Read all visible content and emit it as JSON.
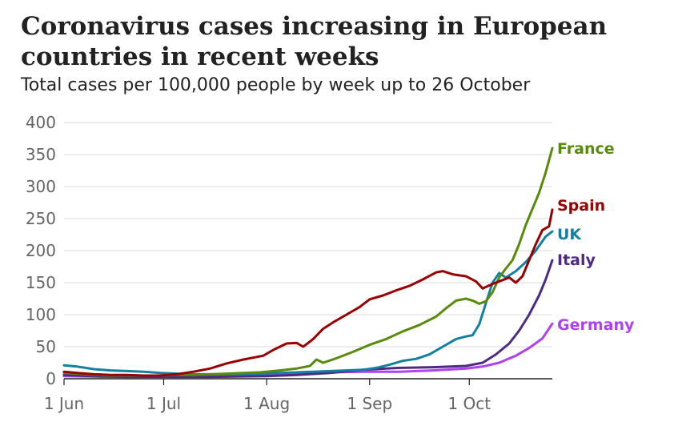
{
  "title": "Coronavirus cases increasing in European countries in recent weeks",
  "subtitle": "Total cases per 100,000 people by week up to 26 October",
  "chart_data": {
    "type": "line",
    "title": "Coronavirus cases increasing in European countries in recent weeks",
    "subtitle": "Total cases per 100,000 people by week up to 26 October",
    "xlabel": "",
    "ylabel": "",
    "x_ticks": [
      "1 Jun",
      "1 Jul",
      "1 Aug",
      "1 Sep",
      "1 Oct"
    ],
    "y_ticks": [
      0,
      50,
      100,
      150,
      200,
      250,
      300,
      350,
      400
    ],
    "x_range": [
      "2020-06-01",
      "2020-10-26"
    ],
    "ylim": [
      0,
      400
    ],
    "grid": true,
    "legend": "direct labels at line ends",
    "series": [
      {
        "name": "France",
        "color": "#588b0b",
        "points": [
          [
            "2020-06-01",
            9
          ],
          [
            "2020-06-05",
            8
          ],
          [
            "2020-06-10",
            6
          ],
          [
            "2020-06-15",
            5
          ],
          [
            "2020-06-20",
            5
          ],
          [
            "2020-06-25",
            5
          ],
          [
            "2020-06-30",
            5
          ],
          [
            "2020-07-05",
            6
          ],
          [
            "2020-07-10",
            6
          ],
          [
            "2020-07-15",
            7
          ],
          [
            "2020-07-20",
            8
          ],
          [
            "2020-07-25",
            9
          ],
          [
            "2020-07-30",
            10
          ],
          [
            "2020-08-05",
            13
          ],
          [
            "2020-08-10",
            16
          ],
          [
            "2020-08-14",
            20
          ],
          [
            "2020-08-16",
            30
          ],
          [
            "2020-08-18",
            25
          ],
          [
            "2020-08-22",
            32
          ],
          [
            "2020-08-27",
            42
          ],
          [
            "2020-09-01",
            53
          ],
          [
            "2020-09-06",
            62
          ],
          [
            "2020-09-11",
            74
          ],
          [
            "2020-09-16",
            84
          ],
          [
            "2020-09-21",
            97
          ],
          [
            "2020-09-24",
            110
          ],
          [
            "2020-09-27",
            122
          ],
          [
            "2020-09-30",
            125
          ],
          [
            "2020-10-02",
            122
          ],
          [
            "2020-10-04",
            117
          ],
          [
            "2020-10-06",
            121
          ],
          [
            "2020-10-08",
            135
          ],
          [
            "2020-10-10",
            158
          ],
          [
            "2020-10-12",
            172
          ],
          [
            "2020-10-14",
            185
          ],
          [
            "2020-10-16",
            210
          ],
          [
            "2020-10-18",
            240
          ],
          [
            "2020-10-20",
            265
          ],
          [
            "2020-10-22",
            290
          ],
          [
            "2020-10-24",
            322
          ],
          [
            "2020-10-26",
            360
          ]
        ]
      },
      {
        "name": "Spain",
        "color": "#990000",
        "points": [
          [
            "2020-06-01",
            11
          ],
          [
            "2020-06-05",
            9
          ],
          [
            "2020-06-10",
            7
          ],
          [
            "2020-06-15",
            6
          ],
          [
            "2020-06-20",
            6
          ],
          [
            "2020-06-25",
            5
          ],
          [
            "2020-06-30",
            5
          ],
          [
            "2020-07-05",
            7
          ],
          [
            "2020-07-10",
            11
          ],
          [
            "2020-07-15",
            16
          ],
          [
            "2020-07-20",
            24
          ],
          [
            "2020-07-25",
            30
          ],
          [
            "2020-07-31",
            36
          ],
          [
            "2020-08-03",
            45
          ],
          [
            "2020-08-07",
            55
          ],
          [
            "2020-08-10",
            56
          ],
          [
            "2020-08-12",
            50
          ],
          [
            "2020-08-15",
            62
          ],
          [
            "2020-08-18",
            78
          ],
          [
            "2020-08-21",
            88
          ],
          [
            "2020-08-25",
            100
          ],
          [
            "2020-08-29",
            112
          ],
          [
            "2020-09-01",
            124
          ],
          [
            "2020-09-05",
            130
          ],
          [
            "2020-09-09",
            138
          ],
          [
            "2020-09-13",
            145
          ],
          [
            "2020-09-17",
            155
          ],
          [
            "2020-09-21",
            166
          ],
          [
            "2020-09-23",
            168
          ],
          [
            "2020-09-26",
            163
          ],
          [
            "2020-09-30",
            160
          ],
          [
            "2020-10-03",
            152
          ],
          [
            "2020-10-05",
            141
          ],
          [
            "2020-10-08",
            148
          ],
          [
            "2020-10-11",
            154
          ],
          [
            "2020-10-13",
            158
          ],
          [
            "2020-10-15",
            150
          ],
          [
            "2020-10-17",
            160
          ],
          [
            "2020-10-19",
            185
          ],
          [
            "2020-10-21",
            210
          ],
          [
            "2020-10-23",
            232
          ],
          [
            "2020-10-25",
            238
          ],
          [
            "2020-10-26",
            264
          ]
        ]
      },
      {
        "name": "UK",
        "color": "#1380a1",
        "points": [
          [
            "2020-06-01",
            21
          ],
          [
            "2020-06-05",
            19
          ],
          [
            "2020-06-10",
            15
          ],
          [
            "2020-06-15",
            13
          ],
          [
            "2020-06-20",
            12
          ],
          [
            "2020-06-25",
            11
          ],
          [
            "2020-06-30",
            9
          ],
          [
            "2020-07-05",
            8
          ],
          [
            "2020-07-10",
            7
          ],
          [
            "2020-07-15",
            7
          ],
          [
            "2020-07-20",
            7
          ],
          [
            "2020-07-25",
            7
          ],
          [
            "2020-07-30",
            8
          ],
          [
            "2020-08-05",
            9
          ],
          [
            "2020-08-10",
            10
          ],
          [
            "2020-08-15",
            11
          ],
          [
            "2020-08-20",
            12
          ],
          [
            "2020-08-25",
            13
          ],
          [
            "2020-08-30",
            14
          ],
          [
            "2020-09-03",
            17
          ],
          [
            "2020-09-07",
            22
          ],
          [
            "2020-09-11",
            28
          ],
          [
            "2020-09-15",
            31
          ],
          [
            "2020-09-19",
            38
          ],
          [
            "2020-09-23",
            50
          ],
          [
            "2020-09-27",
            62
          ],
          [
            "2020-09-30",
            66
          ],
          [
            "2020-10-02",
            68
          ],
          [
            "2020-10-04",
            85
          ],
          [
            "2020-10-06",
            118
          ],
          [
            "2020-10-08",
            150
          ],
          [
            "2020-10-10",
            165
          ],
          [
            "2020-10-12",
            158
          ],
          [
            "2020-10-15",
            168
          ],
          [
            "2020-10-18",
            182
          ],
          [
            "2020-10-21",
            200
          ],
          [
            "2020-10-24",
            222
          ],
          [
            "2020-10-26",
            230
          ]
        ]
      },
      {
        "name": "Italy",
        "color": "#4e2a84",
        "points": [
          [
            "2020-06-01",
            6
          ],
          [
            "2020-06-10",
            4
          ],
          [
            "2020-06-20",
            3
          ],
          [
            "2020-07-01",
            3
          ],
          [
            "2020-07-15",
            3
          ],
          [
            "2020-08-01",
            4
          ],
          [
            "2020-08-10",
            6
          ],
          [
            "2020-08-20",
            9
          ],
          [
            "2020-08-30",
            14
          ],
          [
            "2020-09-10",
            17
          ],
          [
            "2020-09-20",
            18
          ],
          [
            "2020-09-30",
            20
          ],
          [
            "2020-10-05",
            25
          ],
          [
            "2020-10-09",
            38
          ],
          [
            "2020-10-13",
            55
          ],
          [
            "2020-10-16",
            75
          ],
          [
            "2020-10-19",
            100
          ],
          [
            "2020-10-22",
            130
          ],
          [
            "2020-10-24",
            155
          ],
          [
            "2020-10-26",
            185
          ]
        ]
      },
      {
        "name": "Germany",
        "color": "#b041f0",
        "points": [
          [
            "2020-06-01",
            4
          ],
          [
            "2020-06-15",
            3
          ],
          [
            "2020-07-01",
            3
          ],
          [
            "2020-07-15",
            3
          ],
          [
            "2020-08-01",
            5
          ],
          [
            "2020-08-10",
            7
          ],
          [
            "2020-08-20",
            10
          ],
          [
            "2020-08-30",
            11
          ],
          [
            "2020-09-10",
            11
          ],
          [
            "2020-09-20",
            13
          ],
          [
            "2020-09-30",
            16
          ],
          [
            "2020-10-05",
            19
          ],
          [
            "2020-10-10",
            25
          ],
          [
            "2020-10-15",
            36
          ],
          [
            "2020-10-19",
            48
          ],
          [
            "2020-10-23",
            63
          ],
          [
            "2020-10-26",
            86
          ]
        ]
      }
    ]
  }
}
